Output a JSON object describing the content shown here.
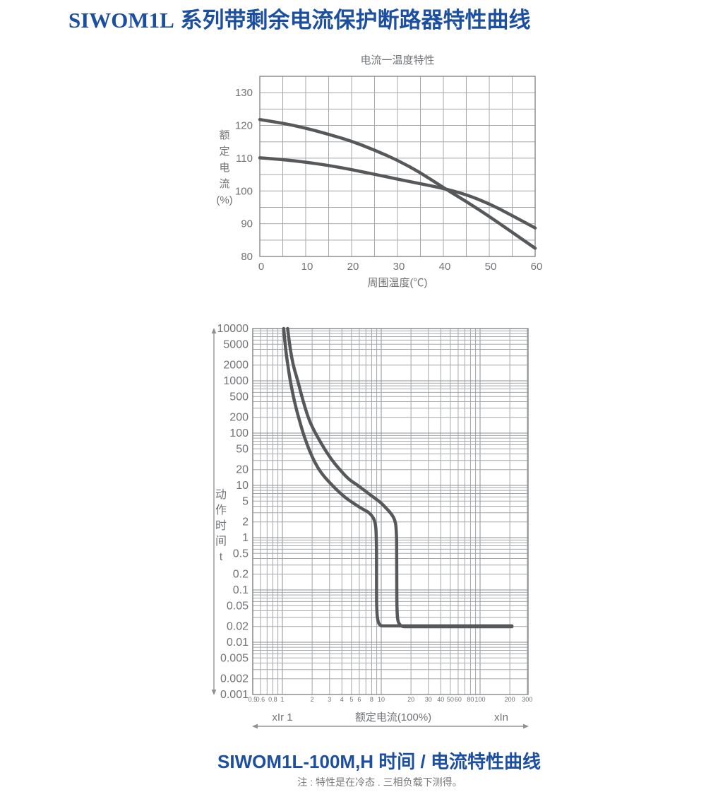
{
  "page": {
    "title_latin": "SIWOM1L",
    "title_rest": " 系列带剩余电流保护断路器特性曲线",
    "bottom_title": "SIWOM1L-100M,H 时间 / 电流特性曲线",
    "note": "注 : 特性是在冷态 . 三相负载下测得。"
  },
  "colors": {
    "title_blue": "#1d4fa1",
    "curve_gray": "#57585a",
    "grid_minor": "#a5a7aa",
    "grid_major": "#8f9194",
    "border_gray": "#7e8083",
    "axis_text": "#707275"
  },
  "chart_data": [
    {
      "name": "current-temperature",
      "type": "line",
      "scale": "linear",
      "title": "电流一温度特性",
      "xlabel": "周围温度(℃)",
      "ylabel": "额定电流(%)",
      "ylabel_vertical": [
        "额",
        "定",
        "电",
        "流",
        "(%)"
      ],
      "xlim": [
        0,
        60
      ],
      "ylim": [
        80,
        135
      ],
      "x_ticks": [
        0,
        10,
        20,
        30,
        40,
        50,
        60
      ],
      "y_ticks": [
        80,
        90,
        100,
        110,
        120,
        130
      ],
      "x_grid_step": 5,
      "y_grid_step": 5,
      "grid": true,
      "legend": "none",
      "series": [
        {
          "name": "high-start-curve",
          "points": [
            [
              0,
              121.8
            ],
            [
              5,
              120.7
            ],
            [
              10,
              119.2
            ],
            [
              15,
              117.3
            ],
            [
              20,
              115.2
            ],
            [
              25,
              112.5
            ],
            [
              30,
              109.4
            ],
            [
              35,
              105.6
            ],
            [
              40,
              101.0
            ],
            [
              45,
              96.8
            ],
            [
              50,
              92.2
            ],
            [
              55,
              87.4
            ],
            [
              60,
              82.5
            ]
          ]
        },
        {
          "name": "low-start-curve",
          "points": [
            [
              0,
              110.1
            ],
            [
              5,
              109.6
            ],
            [
              10,
              108.8
            ],
            [
              15,
              107.8
            ],
            [
              20,
              106.5
            ],
            [
              25,
              105.1
            ],
            [
              30,
              103.6
            ],
            [
              35,
              102.2
            ],
            [
              40,
              100.8
            ],
            [
              45,
              98.9
            ],
            [
              50,
              96.1
            ],
            [
              55,
              92.5
            ],
            [
              60,
              88.7
            ]
          ]
        }
      ]
    },
    {
      "name": "time-current",
      "type": "line",
      "scale": "log-log",
      "title": "",
      "xlabel": "额定电流(100%)",
      "xlabel_left": "xIr 1",
      "xlabel_right": "xIn",
      "ylabel": "动作时间 t",
      "ylabel_vertical": [
        "动",
        "作",
        "时",
        "间",
        "t"
      ],
      "xlim": [
        0.5,
        306
      ],
      "ylim": [
        0.001,
        10000
      ],
      "x_tick_labels": [
        "0.5",
        "0.6",
        "0.8",
        "1",
        "2",
        "3",
        "4",
        "5",
        "6",
        "8",
        "10",
        "20",
        "30",
        "40",
        "50",
        "60",
        "80",
        "100",
        "200",
        "300"
      ],
      "y_tick_labels": [
        "10000",
        "5000",
        "2000",
        "1000",
        "500",
        "200",
        "100",
        "50",
        "20",
        "10",
        "5",
        "2",
        "1",
        "0.5",
        "0.2",
        "0.1",
        "0.05",
        "0.02",
        "0.01",
        "0.005",
        "0.002",
        "0.001"
      ],
      "grid": true,
      "legend": "none",
      "series": [
        {
          "name": "curve-M",
          "points": [
            [
              1.03,
              10000
            ],
            [
              1.06,
              5500
            ],
            [
              1.1,
              3000
            ],
            [
              1.15,
              1700
            ],
            [
              1.2,
              1000
            ],
            [
              1.28,
              540
            ],
            [
              1.38,
              290
            ],
            [
              1.5,
              165
            ],
            [
              1.62,
              100
            ],
            [
              1.8,
              57
            ],
            [
              2.0,
              35
            ],
            [
              2.3,
              21
            ],
            [
              2.7,
              14
            ],
            [
              3.2,
              10
            ],
            [
              3.9,
              6.9
            ],
            [
              4.7,
              5.2
            ],
            [
              5.6,
              4.2
            ],
            [
              6.5,
              3.5
            ],
            [
              7.4,
              3.1
            ],
            [
              8.1,
              2.6
            ],
            [
              8.6,
              2.1
            ],
            [
              8.85,
              1.5
            ],
            [
              8.95,
              0.7
            ],
            [
              8.98,
              0.05
            ],
            [
              9.1,
              0.03
            ],
            [
              9.4,
              0.023
            ],
            [
              9.9,
              0.0205
            ],
            [
              210,
              0.0205
            ]
          ]
        },
        {
          "name": "curve-H",
          "points": [
            [
              1.13,
              10000
            ],
            [
              1.17,
              5800
            ],
            [
              1.22,
              3400
            ],
            [
              1.28,
              2100
            ],
            [
              1.35,
              1450
            ],
            [
              1.43,
              1000
            ],
            [
              1.55,
              560
            ],
            [
              1.7,
              300
            ],
            [
              1.9,
              160
            ],
            [
              2.2,
              93
            ],
            [
              2.6,
              54
            ],
            [
              3.1,
              32
            ],
            [
              3.8,
              20
            ],
            [
              4.7,
              13
            ],
            [
              5.8,
              10
            ],
            [
              7.0,
              7.6
            ],
            [
              8.5,
              5.8
            ],
            [
              10.0,
              4.6
            ],
            [
              11.0,
              3.8
            ],
            [
              12.2,
              3.1
            ],
            [
              13.3,
              2.5
            ],
            [
              14.0,
              1.9
            ],
            [
              14.3,
              1.1
            ],
            [
              14.4,
              0.05
            ],
            [
              14.55,
              0.03
            ],
            [
              14.9,
              0.024
            ],
            [
              15.6,
              0.021
            ],
            [
              16.6,
              0.0198
            ],
            [
              210,
              0.0198
            ]
          ]
        }
      ]
    }
  ]
}
